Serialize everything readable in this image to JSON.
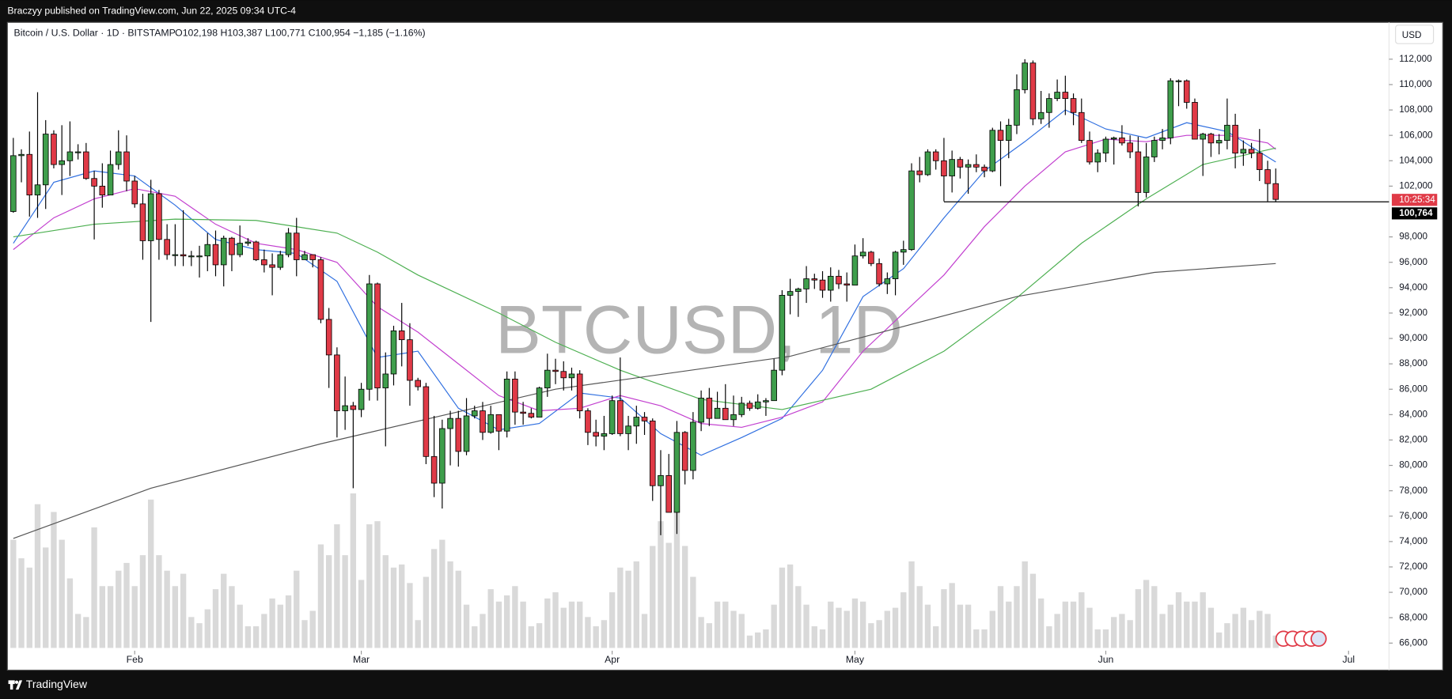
{
  "top_bar": {
    "publisher": "Braczyy published on TradingView.com, Jun 22, 2025 09:34 UTC-4",
    "brand": "TradingView"
  },
  "chart_data": {
    "type": "candlestick",
    "title": "Bitcoin / U.S. Dollar · 1D · BITSTAMP",
    "ohlc_text": "O102,198 H103,387 L100,771 C100,954 −1,185 (−1.16%)",
    "watermark": "BTCUSD, 1D",
    "currency": "USD",
    "countdown": "10:25:34",
    "up_color": "#3f9e4c",
    "down_color": "#e03a47",
    "border_color": "#000000",
    "volume_color": "#d9d9d9",
    "xlim": [
      -0.5,
      170
    ],
    "xticks": [
      {
        "value": 15,
        "label": "Feb"
      },
      {
        "value": 43,
        "label": "Mar"
      },
      {
        "value": 74,
        "label": "Apr"
      },
      {
        "value": 104,
        "label": "May"
      },
      {
        "value": 135,
        "label": "Jun"
      },
      {
        "value": 165,
        "label": "Jul"
      }
    ],
    "ylim": [
      65400,
      114900
    ],
    "yticks": [
      {
        "value": 112000,
        "label": "112,000"
      },
      {
        "value": 110000,
        "label": "110,000"
      },
      {
        "value": 108000,
        "label": "108,000"
      },
      {
        "value": 106000,
        "label": "106,000"
      },
      {
        "value": 104000,
        "label": "104,000"
      },
      {
        "value": 102000,
        "label": "102,000"
      },
      {
        "value": 98000,
        "label": "98,000"
      },
      {
        "value": 96000,
        "label": "96,000"
      },
      {
        "value": 94000,
        "label": "94,000"
      },
      {
        "value": 92000,
        "label": "92,000"
      },
      {
        "value": 90000,
        "label": "90,000"
      },
      {
        "value": 88000,
        "label": "88,000"
      },
      {
        "value": 86000,
        "label": "86,000"
      },
      {
        "value": 84000,
        "label": "84,000"
      },
      {
        "value": 82000,
        "label": "82,000"
      },
      {
        "value": 80000,
        "label": "80,000"
      },
      {
        "value": 78000,
        "label": "78,000"
      },
      {
        "value": 76000,
        "label": "76,000"
      },
      {
        "value": 74000,
        "label": "74,000"
      },
      {
        "value": 72000,
        "label": "72,000"
      },
      {
        "value": 70000,
        "label": "70,000"
      },
      {
        "value": 68000,
        "label": "68,000"
      },
      {
        "value": 66000,
        "label": "66,000"
      }
    ],
    "price_line": {
      "value": 100764,
      "label": "100,764",
      "start": 115
    },
    "vlim": [
      0,
      100
    ],
    "ohlc": [
      [
        100000,
        105800,
        99900,
        104400
      ],
      [
        104400,
        104900,
        102300,
        104500
      ],
      [
        104500,
        106300,
        99600,
        101300
      ],
      [
        101300,
        109400,
        99500,
        102100
      ],
      [
        102100,
        107200,
        100200,
        106100
      ],
      [
        106100,
        106400,
        103400,
        103700
      ],
      [
        103700,
        106800,
        101300,
        104000
      ],
      [
        104000,
        107100,
        102800,
        104700
      ],
      [
        104700,
        105300,
        104100,
        104700
      ],
      [
        104700,
        105400,
        102500,
        102600
      ],
      [
        102600,
        103200,
        97800,
        102000
      ],
      [
        102000,
        103800,
        100300,
        101300
      ],
      [
        101300,
        104800,
        101300,
        103700
      ],
      [
        103700,
        106400,
        103300,
        104700
      ],
      [
        104700,
        106000,
        101600,
        102400
      ],
      [
        102400,
        102800,
        100300,
        100600
      ],
      [
        100600,
        101400,
        96200,
        97700
      ],
      [
        97700,
        102500,
        91300,
        101400
      ],
      [
        101400,
        101700,
        96200,
        97800
      ],
      [
        97800,
        99000,
        96200,
        96600
      ],
      [
        96600,
        99000,
        95700,
        96600
      ],
      [
        96600,
        100100,
        95700,
        96500
      ],
      [
        96500,
        96900,
        95700,
        96500
      ],
      [
        96500,
        97300,
        94800,
        96500
      ],
      [
        96500,
        98300,
        95300,
        97400
      ],
      [
        97400,
        98500,
        94900,
        95800
      ],
      [
        95800,
        98100,
        94100,
        97900
      ],
      [
        97900,
        98000,
        95300,
        96600
      ],
      [
        96600,
        98900,
        96400,
        97500
      ],
      [
        97500,
        97900,
        97300,
        97600
      ],
      [
        97600,
        97700,
        96100,
        96200
      ],
      [
        96200,
        97000,
        95200,
        95800
      ],
      [
        95800,
        96700,
        93400,
        95600
      ],
      [
        95600,
        96900,
        95400,
        96600
      ],
      [
        96600,
        98700,
        96400,
        98300
      ],
      [
        98300,
        99500,
        94900,
        96200
      ],
      [
        96200,
        96900,
        96200,
        96600
      ],
      [
        96600,
        96600,
        95600,
        96200
      ],
      [
        96200,
        96400,
        91200,
        91500
      ],
      [
        91500,
        92400,
        86100,
        88700
      ],
      [
        88700,
        89300,
        82200,
        84300
      ],
      [
        84300,
        87000,
        82800,
        84700
      ],
      [
        84700,
        85000,
        78200,
        84400
      ],
      [
        84400,
        86500,
        83800,
        86000
      ],
      [
        86000,
        95000,
        85100,
        94300
      ],
      [
        94300,
        94400,
        85100,
        86100
      ],
      [
        86100,
        88900,
        81500,
        87200
      ],
      [
        87200,
        91000,
        86300,
        90600
      ],
      [
        90600,
        92800,
        87800,
        89900
      ],
      [
        89900,
        91200,
        84700,
        86700
      ],
      [
        86700,
        86900,
        85900,
        86200
      ],
      [
        86200,
        86500,
        80100,
        80700
      ],
      [
        80700,
        83900,
        77500,
        78600
      ],
      [
        78600,
        83600,
        76600,
        82900
      ],
      [
        82900,
        84300,
        80000,
        83700
      ],
      [
        83700,
        84300,
        79900,
        81100
      ],
      [
        81100,
        85300,
        80800,
        83900
      ],
      [
        83900,
        84700,
        83700,
        84300
      ],
      [
        84300,
        85000,
        82000,
        82600
      ],
      [
        82600,
        84700,
        82500,
        84000
      ],
      [
        84000,
        84000,
        81200,
        82700
      ],
      [
        82700,
        87400,
        82200,
        86800
      ],
      [
        86800,
        87400,
        83200,
        84200
      ],
      [
        84200,
        85000,
        83200,
        84100
      ],
      [
        84100,
        84500,
        83700,
        83800
      ],
      [
        83800,
        86200,
        83800,
        86100
      ],
      [
        86100,
        88800,
        85400,
        87500
      ],
      [
        87500,
        88400,
        86400,
        87400
      ],
      [
        87400,
        88200,
        85900,
        86900
      ],
      [
        86900,
        87700,
        85900,
        87200
      ],
      [
        87200,
        87500,
        83700,
        84300
      ],
      [
        84300,
        84500,
        81600,
        82600
      ],
      [
        82600,
        83600,
        81500,
        82300
      ],
      [
        82300,
        83900,
        81200,
        82500
      ],
      [
        82500,
        85500,
        82400,
        85100
      ],
      [
        85100,
        88500,
        82300,
        82500
      ],
      [
        82500,
        83900,
        81200,
        83100
      ],
      [
        83100,
        84700,
        81700,
        83800
      ],
      [
        83800,
        84200,
        82400,
        83500
      ],
      [
        83500,
        83700,
        77200,
        78400
      ],
      [
        78400,
        81200,
        74500,
        79200
      ],
      [
        79200,
        80900,
        76300,
        76300
      ],
      [
        76300,
        83500,
        74600,
        82600
      ],
      [
        82600,
        82700,
        78500,
        79600
      ],
      [
        79600,
        84200,
        78900,
        83400
      ],
      [
        83400,
        85900,
        82700,
        85300
      ],
      [
        85300,
        86100,
        83100,
        83700
      ],
      [
        83700,
        85800,
        83700,
        84500
      ],
      [
        84500,
        86400,
        83600,
        83600
      ],
      [
        83600,
        85500,
        83100,
        84000
      ],
      [
        84000,
        85400,
        83800,
        84900
      ],
      [
        84900,
        85100,
        84300,
        84500
      ],
      [
        84500,
        85600,
        84400,
        85000
      ],
      [
        85000,
        85300,
        83900,
        85100
      ],
      [
        85100,
        88400,
        85100,
        87500
      ],
      [
        87500,
        93800,
        87100,
        93400
      ],
      [
        93400,
        94700,
        91900,
        93700
      ],
      [
        93700,
        94000,
        91700,
        93900
      ],
      [
        93900,
        95700,
        92800,
        94700
      ],
      [
        94700,
        95100,
        93900,
        94600
      ],
      [
        94600,
        95300,
        93200,
        93800
      ],
      [
        93800,
        95600,
        92900,
        94900
      ],
      [
        94900,
        95400,
        93900,
        94300
      ],
      [
        94300,
        95200,
        92900,
        94200
      ],
      [
        94200,
        97400,
        94200,
        96500
      ],
      [
        96500,
        97900,
        96300,
        96800
      ],
      [
        96800,
        96900,
        95700,
        95900
      ],
      [
        95900,
        96300,
        94100,
        94300
      ],
      [
        94300,
        95200,
        93500,
        94700
      ],
      [
        94700,
        96900,
        93400,
        96800
      ],
      [
        96800,
        97700,
        95800,
        97000
      ],
      [
        97000,
        103800,
        96900,
        103200
      ],
      [
        103200,
        104300,
        102300,
        102900
      ],
      [
        102900,
        104900,
        102800,
        104700
      ],
      [
        104700,
        104900,
        103300,
        104000
      ],
      [
        104000,
        105800,
        100800,
        102800
      ],
      [
        102800,
        104800,
        101500,
        104100
      ],
      [
        104100,
        104300,
        102600,
        103500
      ],
      [
        103500,
        104100,
        101400,
        103700
      ],
      [
        103700,
        104500,
        103100,
        103500
      ],
      [
        103500,
        103700,
        102700,
        103200
      ],
      [
        103200,
        106600,
        103100,
        106400
      ],
      [
        106400,
        107100,
        102000,
        105600
      ],
      [
        105600,
        107300,
        104200,
        106800
      ],
      [
        106800,
        110800,
        106100,
        109600
      ],
      [
        109600,
        112000,
        109300,
        111700
      ],
      [
        111700,
        111900,
        106800,
        107300
      ],
      [
        107300,
        109500,
        106900,
        107800
      ],
      [
        107800,
        109300,
        106600,
        108900
      ],
      [
        108900,
        110400,
        108700,
        109400
      ],
      [
        109400,
        110700,
        107600,
        108900
      ],
      [
        108900,
        109300,
        106800,
        107800
      ],
      [
        107800,
        108900,
        105400,
        105600
      ],
      [
        105600,
        106300,
        103700,
        103900
      ],
      [
        103900,
        104900,
        103100,
        104600
      ],
      [
        104600,
        105900,
        103900,
        105700
      ],
      [
        105700,
        105900,
        103700,
        105800
      ],
      [
        105800,
        106800,
        105200,
        105400
      ],
      [
        105400,
        106000,
        104200,
        104700
      ],
      [
        104700,
        105900,
        100400,
        101500
      ],
      [
        101500,
        105400,
        101100,
        104300
      ],
      [
        104300,
        105900,
        103900,
        105600
      ],
      [
        105600,
        106500,
        104900,
        105800
      ],
      [
        105800,
        110500,
        105300,
        110300
      ],
      [
        110300,
        110400,
        108300,
        110300
      ],
      [
        110300,
        110400,
        108100,
        108600
      ],
      [
        108600,
        108900,
        105700,
        105700
      ],
      [
        105700,
        106200,
        102800,
        106100
      ],
      [
        106100,
        106200,
        104300,
        105400
      ],
      [
        105400,
        106100,
        104500,
        105600
      ],
      [
        105600,
        108900,
        104900,
        106800
      ],
      [
        106800,
        107700,
        103400,
        104600
      ],
      [
        104600,
        105600,
        103600,
        104900
      ],
      [
        104900,
        105400,
        104200,
        104600
      ],
      [
        104600,
        106500,
        102400,
        103300
      ],
      [
        103300,
        104000,
        100800,
        102200
      ],
      [
        102198,
        103387,
        100771,
        100954
      ]
    ],
    "volume": [
      70,
      58,
      52,
      93,
      65,
      88,
      70,
      45,
      22,
      20,
      78,
      40,
      40,
      50,
      55,
      40,
      60,
      96,
      60,
      50,
      40,
      48,
      20,
      16,
      25,
      38,
      48,
      40,
      28,
      14,
      14,
      22,
      32,
      28,
      34,
      50,
      18,
      24,
      67,
      60,
      80,
      60,
      100,
      44,
      80,
      82,
      60,
      52,
      54,
      42,
      18,
      46,
      64,
      70,
      56,
      50,
      28,
      14,
      22,
      38,
      30,
      34,
      40,
      30,
      14,
      16,
      32,
      36,
      26,
      30,
      30,
      20,
      14,
      18,
      36,
      52,
      50,
      56,
      22,
      66,
      82,
      68,
      92,
      66,
      46,
      20,
      16,
      30,
      30,
      24,
      22,
      8,
      10,
      12,
      28,
      52,
      54,
      40,
      28,
      14,
      12,
      30,
      26,
      24,
      32,
      30,
      16,
      18,
      24,
      26,
      36,
      56,
      40,
      28,
      14,
      38,
      42,
      28,
      28,
      12,
      12,
      24,
      40,
      30,
      40,
      56,
      48,
      32,
      14,
      22,
      30,
      30,
      36,
      26,
      12,
      12,
      20,
      22,
      18,
      38,
      44,
      40,
      22,
      28,
      36,
      30,
      30,
      36,
      26,
      10,
      16,
      22,
      26,
      18,
      24,
      22,
      8
    ],
    "lines": [
      {
        "color": "#2f6fe0",
        "x": [
          0,
          5,
          10,
          15,
          20,
          25,
          30,
          35,
          40,
          45,
          50,
          55,
          60,
          65,
          70,
          75,
          80,
          85,
          90,
          95,
          100,
          105,
          110,
          115,
          120,
          125,
          130,
          135,
          140,
          145,
          150,
          155,
          156
        ],
        "values": [
          97500,
          102300,
          103200,
          102800,
          100500,
          97800,
          97000,
          96700,
          94500,
          88500,
          89000,
          84500,
          82800,
          83300,
          85700,
          85300,
          82500,
          80800,
          82200,
          83700,
          87500,
          93300,
          95500,
          99500,
          103200,
          105500,
          108000,
          106500,
          105800,
          107000,
          106300,
          104300,
          103900
        ]
      },
      {
        "color": "#c23fcf",
        "x": [
          0,
          5,
          10,
          15,
          20,
          25,
          30,
          35,
          40,
          45,
          50,
          55,
          60,
          65,
          70,
          75,
          80,
          85,
          90,
          95,
          100,
          105,
          110,
          115,
          120,
          125,
          130,
          135,
          140,
          145,
          150,
          155,
          156
        ],
        "values": [
          97000,
          99500,
          101000,
          101800,
          101200,
          99000,
          97500,
          97000,
          96000,
          92500,
          90500,
          88000,
          85500,
          84300,
          84500,
          85500,
          84700,
          83300,
          83000,
          83800,
          85000,
          89000,
          92000,
          95000,
          98800,
          102000,
          104700,
          105700,
          105500,
          106000,
          106000,
          105400,
          104900
        ]
      },
      {
        "color": "#4caf50",
        "x": [
          0,
          10,
          20,
          30,
          40,
          45,
          50,
          60,
          67,
          75,
          85,
          95,
          106,
          115,
          124,
          132,
          140,
          147,
          156
        ],
        "values": [
          98000,
          99000,
          99400,
          99300,
          98300,
          96800,
          95000,
          92000,
          89700,
          87500,
          85200,
          84400,
          86000,
          89000,
          93200,
          97500,
          101000,
          103700,
          105000
        ]
      },
      {
        "color": "#555555",
        "x": [
          0,
          17,
          38,
          67,
          96,
          124,
          141,
          156
        ],
        "values": [
          74240,
          78200,
          81700,
          86000,
          88600,
          93300,
          95200,
          95900
        ]
      }
    ]
  }
}
